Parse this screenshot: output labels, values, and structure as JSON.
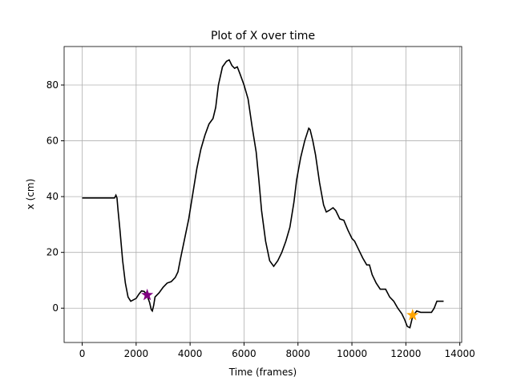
{
  "chart_data": {
    "type": "line",
    "title": "Plot of X over time",
    "xlabel": "Time (frames)",
    "ylabel": "x (cm)",
    "x": [
      0,
      1200,
      1250,
      1290,
      1330,
      1400,
      1500,
      1600,
      1700,
      1800,
      1900,
      2000,
      2100,
      2200,
      2300,
      2400,
      2500,
      2560,
      2600,
      2650,
      2700,
      2850,
      3000,
      3150,
      3300,
      3450,
      3550,
      3650,
      3800,
      3950,
      4100,
      4250,
      4400,
      4550,
      4700,
      4850,
      4950,
      5050,
      5200,
      5350,
      5450,
      5550,
      5650,
      5750,
      5850,
      6000,
      6150,
      6300,
      6450,
      6550,
      6650,
      6800,
      6950,
      7100,
      7250,
      7400,
      7550,
      7700,
      7850,
      7950,
      8100,
      8250,
      8400,
      8450,
      8550,
      8650,
      8800,
      8950,
      9050,
      9150,
      9300,
      9400,
      9550,
      9700,
      9850,
      10000,
      10100,
      10250,
      10400,
      10550,
      10650,
      10750,
      10900,
      11050,
      11250,
      11400,
      11550,
      11700,
      11850,
      11950,
      12050,
      12150,
      12250,
      12400,
      12550,
      12700,
      12850,
      12950,
      13050,
      13150,
      13400
    ],
    "series": [
      {
        "color": "#000000",
        "values": [
          39.5,
          39.5,
          40.5,
          39.5,
          35,
          28,
          17,
          9,
          4,
          2.5,
          3,
          3.5,
          5,
          6.2,
          6,
          4.7,
          2,
          -0.5,
          -1,
          1,
          4,
          5.5,
          7.5,
          9,
          9.5,
          11,
          13,
          18,
          25,
          32,
          41,
          50,
          57,
          62,
          66,
          68,
          72,
          80,
          86.5,
          88.5,
          89,
          87,
          86,
          86.5,
          84,
          80,
          75,
          65,
          56,
          46,
          35,
          24,
          17,
          15,
          17,
          20,
          24,
          29,
          38,
          46,
          54,
          60,
          64.5,
          64,
          60,
          55,
          45,
          37,
          34.5,
          35,
          36,
          35,
          32,
          31.5,
          28,
          25,
          24,
          21,
          18,
          15.5,
          15.5,
          12,
          9,
          6.8,
          6.8,
          4,
          2.5,
          0,
          -2,
          -4,
          -6.5,
          -7,
          -3,
          -1,
          -1.5,
          -1.5,
          -1.5,
          -1.5,
          0,
          2.5,
          2.5
        ]
      }
    ],
    "markers": [
      {
        "x": 2410,
        "y": 4.7,
        "color": "#800080"
      },
      {
        "x": 12250,
        "y": -2.5,
        "color": "#ffa500"
      }
    ],
    "xlim": [
      -670,
      14070
    ],
    "ylim": [
      -12.3,
      93.8
    ],
    "xticks": [
      0,
      2000,
      4000,
      6000,
      8000,
      10000,
      12000,
      14000
    ],
    "yticks": [
      0,
      20,
      40,
      60,
      80
    ],
    "grid": true
  }
}
